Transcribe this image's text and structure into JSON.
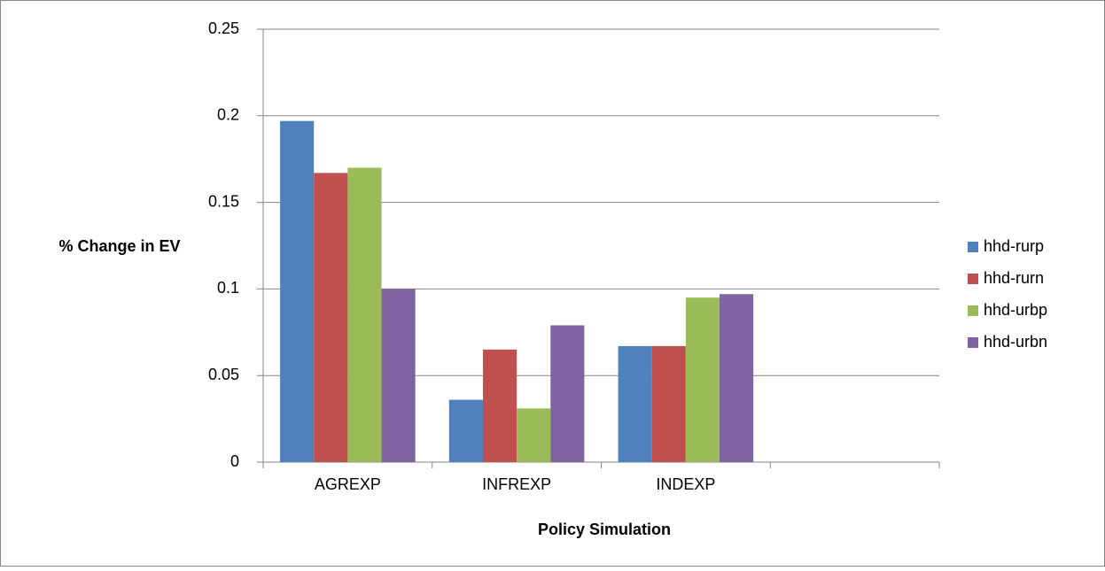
{
  "chart_data": {
    "type": "bar",
    "x_label": "Policy Simulation",
    "y_label": "% Change in EV",
    "categories": [
      "AGREXP",
      "INFREXP",
      "INDEXP",
      null
    ],
    "series": [
      {
        "name": "hhd-rurp",
        "color": "#4f81bd",
        "values": [
          0.197,
          0.036,
          0.067,
          null
        ]
      },
      {
        "name": "hhd-rurn",
        "color": "#c0504d",
        "values": [
          0.167,
          0.065,
          0.067,
          null
        ]
      },
      {
        "name": "hhd-urbp",
        "color": "#9bbb59",
        "values": [
          0.17,
          0.031,
          0.095,
          null
        ]
      },
      {
        "name": "hhd-urbn",
        "color": "#8064a2",
        "values": [
          0.1,
          0.079,
          0.097,
          null
        ]
      }
    ],
    "ylim": [
      0,
      0.25
    ],
    "yticks": [
      0,
      0.05,
      0.1,
      0.15,
      0.2,
      0.25
    ],
    "grid": true,
    "legend": "right"
  }
}
